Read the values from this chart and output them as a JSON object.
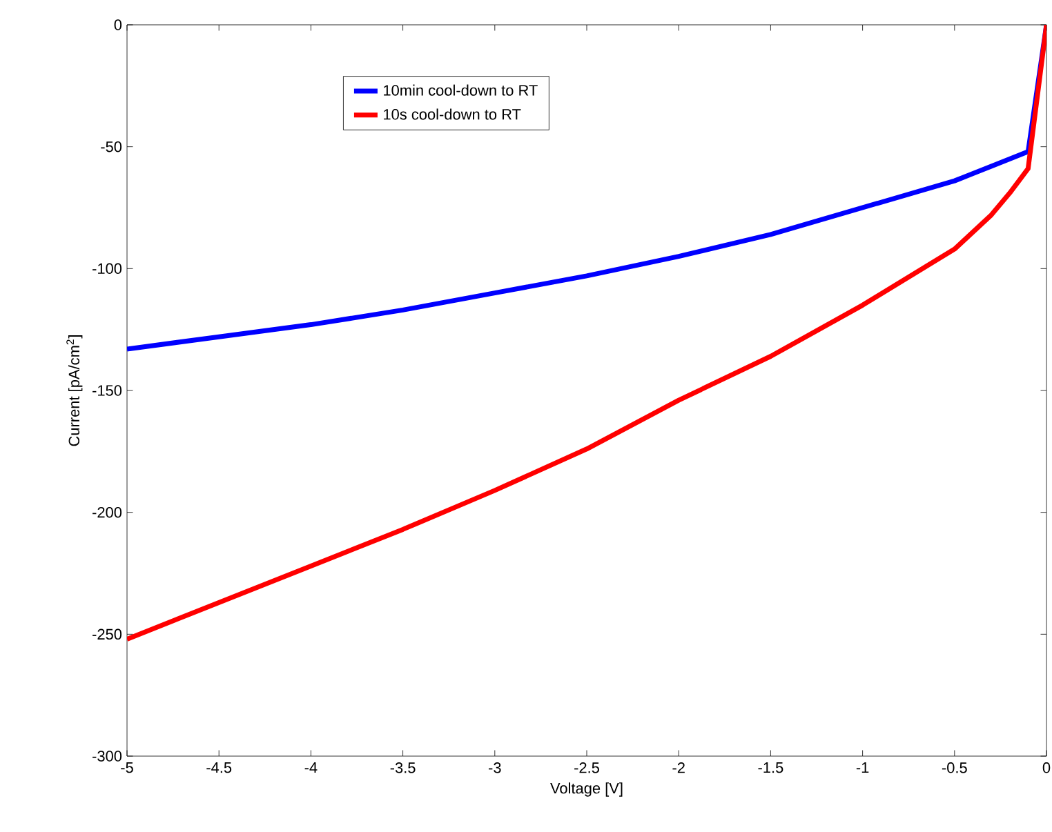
{
  "chart_data": {
    "type": "line",
    "xlabel": "Voltage [V]",
    "ylabel": "Current [pA/cm$^{2}$]",
    "xlim": [
      -5,
      0
    ],
    "ylim": [
      -300,
      0
    ],
    "xticks": [
      -5,
      -4.5,
      -4,
      -3.5,
      -3,
      -2.5,
      -2,
      -1.5,
      -1,
      -0.5,
      0
    ],
    "yticks": [
      -300,
      -250,
      -200,
      -150,
      -100,
      -50,
      0
    ],
    "legend": "top",
    "grid": false,
    "series": [
      {
        "name": "10min cool-down to RT",
        "color": "#0000ff",
        "x": [
          -5,
          -4.5,
          -4,
          -3.5,
          -3,
          -2.5,
          -2,
          -1.5,
          -1,
          -0.5,
          -0.3,
          -0.1,
          0
        ],
        "values": [
          -133,
          -128,
          -123,
          -117,
          -110,
          -103,
          -95,
          -86,
          -75,
          -64,
          -58,
          -52,
          0
        ]
      },
      {
        "name": "10s cool-down to RT",
        "color": "#ff0000",
        "x": [
          -5,
          -4.5,
          -4,
          -3.5,
          -3,
          -2.5,
          -2,
          -1.5,
          -1,
          -0.5,
          -0.3,
          -0.2,
          -0.1,
          0
        ],
        "values": [
          -252,
          -237,
          -222,
          -207,
          -191,
          -174,
          -154,
          -136,
          -115,
          -92,
          -78,
          -69,
          -59,
          0
        ]
      }
    ]
  }
}
